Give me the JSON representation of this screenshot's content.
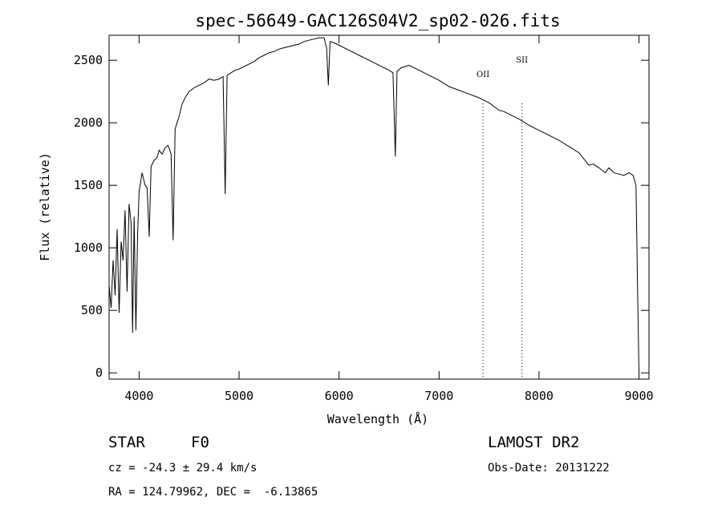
{
  "chart_data": {
    "type": "line",
    "title": "spec-56649-GAC126S04V2_sp02-026.fits",
    "xlabel": "Wavelength (Å)",
    "ylabel": "Flux (relative)",
    "xlim": [
      3700,
      9100
    ],
    "ylim": [
      -50,
      2700
    ],
    "xticks": [
      4000,
      5000,
      6000,
      7000,
      8000,
      9000
    ],
    "yticks": [
      0,
      500,
      1000,
      1500,
      2000,
      2500
    ],
    "grid": false,
    "series": [
      {
        "x": [
          3700,
          3720,
          3740,
          3760,
          3780,
          3800,
          3820,
          3840,
          3860,
          3880,
          3900,
          3920,
          3935,
          3950,
          3968,
          3985,
          4000,
          4030,
          4060,
          4080,
          4101,
          4120,
          4150,
          4180,
          4200,
          4230,
          4260,
          4290,
          4320,
          4340,
          4360,
          4380,
          4400,
          4430,
          4460,
          4500,
          4550,
          4600,
          4650,
          4700,
          4750,
          4800,
          4840,
          4861,
          4880,
          4920,
          4960,
          5000,
          5050,
          5100,
          5150,
          5200,
          5250,
          5300,
          5350,
          5400,
          5450,
          5500,
          5550,
          5600,
          5650,
          5700,
          5750,
          5800,
          5850,
          5875,
          5893,
          5910,
          5950,
          6000,
          6050,
          6100,
          6150,
          6200,
          6250,
          6300,
          6350,
          6400,
          6450,
          6500,
          6540,
          6563,
          6580,
          6620,
          6700,
          6800,
          6900,
          7000,
          7100,
          7200,
          7300,
          7400,
          7500,
          7600,
          7650,
          7700,
          7750,
          7800,
          7900,
          8000,
          8100,
          8200,
          8300,
          8400,
          8498,
          8542,
          8600,
          8662,
          8700,
          8750,
          8800,
          8850,
          8900,
          8940,
          8970,
          8985,
          9000
        ],
        "y": [
          700,
          520,
          900,
          620,
          1150,
          480,
          1050,
          900,
          1300,
          650,
          1350,
          1200,
          320,
          1250,
          340,
          1100,
          1450,
          1600,
          1500,
          1480,
          1090,
          1650,
          1700,
          1720,
          1780,
          1750,
          1800,
          1820,
          1750,
          1060,
          1950,
          2000,
          2050,
          2150,
          2200,
          2250,
          2280,
          2300,
          2320,
          2350,
          2340,
          2350,
          2370,
          1430,
          2380,
          2400,
          2420,
          2430,
          2450,
          2470,
          2490,
          2520,
          2540,
          2560,
          2570,
          2590,
          2600,
          2610,
          2620,
          2630,
          2650,
          2660,
          2670,
          2680,
          2680,
          2600,
          2300,
          2650,
          2640,
          2620,
          2600,
          2580,
          2560,
          2540,
          2520,
          2500,
          2480,
          2460,
          2440,
          2420,
          2400,
          1730,
          2410,
          2440,
          2460,
          2420,
          2380,
          2340,
          2290,
          2260,
          2230,
          2200,
          2160,
          2100,
          2090,
          2070,
          2050,
          2030,
          1980,
          1940,
          1900,
          1860,
          1810,
          1760,
          1660,
          1670,
          1640,
          1600,
          1640,
          1600,
          1590,
          1580,
          1600,
          1580,
          1500,
          700,
          0
        ]
      }
    ],
    "annotations": [
      {
        "label": "OII",
        "x": 7440
      },
      {
        "label": "SII",
        "x": 7830
      }
    ]
  },
  "info": {
    "object_class": "STAR",
    "subclass": "F0",
    "survey": "LAMOST DR2",
    "cz": "cz = -24.3 ± 29.4 km/s",
    "obs_date": "Obs-Date: 20131222",
    "coords": "RA = 124.79962, DEC =  -6.13865"
  }
}
